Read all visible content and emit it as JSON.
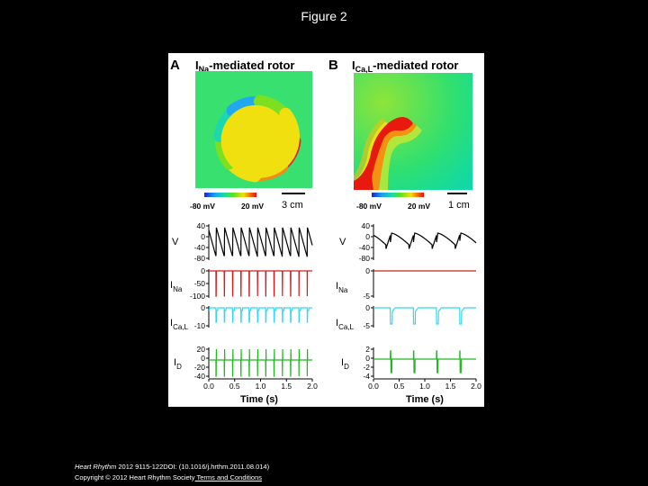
{
  "slide": {
    "title": "Figure 2"
  },
  "panels": {
    "A": {
      "letter": "A",
      "title_main": "I",
      "title_sub": "Na",
      "title_rest": "-mediated rotor",
      "colorbar_min": "-80 mV",
      "colorbar_max": "20 mV",
      "scale": "3 cm",
      "ticks": {
        "v": [
          "40",
          "0",
          "-40",
          "-80"
        ],
        "ina": [
          "0",
          "-50",
          "-100"
        ],
        "ical": [
          "0",
          "-10"
        ],
        "id": [
          "20",
          "0",
          "-20",
          "-40"
        ],
        "time": [
          "0.0",
          "0.5",
          "1.0",
          "1.5",
          "2.0"
        ]
      }
    },
    "B": {
      "letter": "B",
      "title_main": "I",
      "title_sub": "Ca,L",
      "title_rest": "-mediated rotor",
      "colorbar_min": "-80 mV",
      "colorbar_max": "20 mV",
      "scale": "1 cm",
      "ticks": {
        "v": [
          "40",
          "0",
          "-40",
          "-80"
        ],
        "ina": [
          "0",
          "-5"
        ],
        "ical": [
          "0",
          "-5"
        ],
        "id": [
          "2",
          "0",
          "-2",
          "-4"
        ],
        "time": [
          "0.0",
          "0.5",
          "1.0",
          "1.5",
          "2.0"
        ]
      }
    }
  },
  "trace_labels": {
    "v": "V",
    "ina_main": "I",
    "ina_sub": "Na",
    "ical_main": "I",
    "ical_sub": "Ca,L",
    "id_main": "I",
    "id_sub": "D"
  },
  "xlabel": "Time (s)",
  "colors": {
    "v": "#000000",
    "ina": "#cc2020",
    "ical": "#33d6f0",
    "id": "#22b822"
  },
  "footer": {
    "line1_journal": "Heart Rhythm",
    "line1_rest": " 2012 9115-122DOI: (10.1016/j.hrthm.2011.08.014)",
    "line2_text": "Copyright © 2012 Heart Rhythm Society",
    "line2_link": " Terms and Conditions"
  }
}
